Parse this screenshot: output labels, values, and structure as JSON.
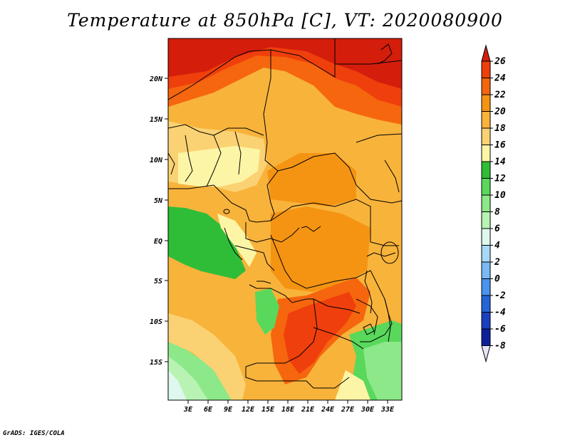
{
  "title": "Temperature at 850hPa [C], VT: 2020080900",
  "credit": "GrADS: IGES/COLA",
  "lon_labels": [
    "3E",
    "6E",
    "9E",
    "12E",
    "15E",
    "18E",
    "21E",
    "24E",
    "27E",
    "30E",
    "33E"
  ],
  "lat_labels": [
    "20N",
    "15N",
    "10N",
    "5N",
    "EQ",
    "5S",
    "10S",
    "15S"
  ],
  "colorbar": {
    "labels": [
      "26",
      "24",
      "22",
      "20",
      "18",
      "16",
      "14",
      "12",
      "10",
      "8",
      "6",
      "4",
      "2",
      "0",
      "-2",
      "-4",
      "-6",
      "-8"
    ],
    "colors": [
      "#d51d0c",
      "#ef3f0c",
      "#f5660f",
      "#f59413",
      "#f8b33b",
      "#fbd273",
      "#fdf5a6",
      "#2fbd38",
      "#59d85c",
      "#8ce889",
      "#b8f3b3",
      "#dff8ee",
      "#a8d8f7",
      "#7ab9f4",
      "#4a94ef",
      "#2565d7",
      "#1a3fbf",
      "#0e1f9a",
      "#0b0a6b"
    ],
    "under_color": "#e8e4f8"
  }
}
